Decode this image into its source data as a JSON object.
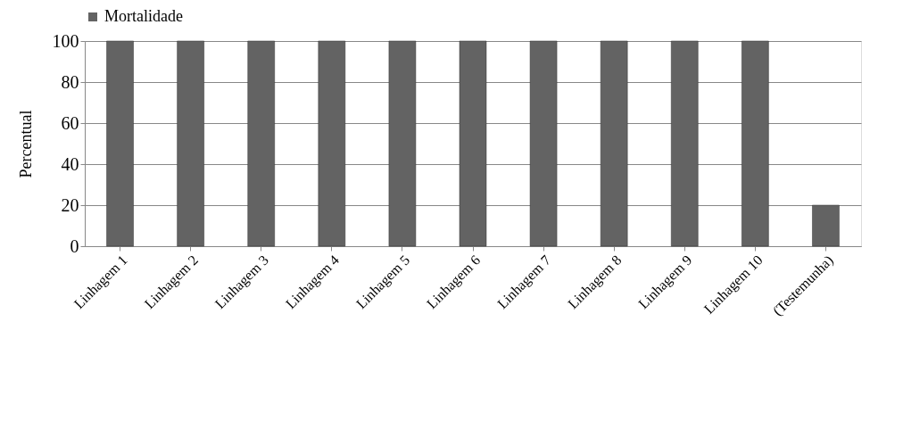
{
  "chart_data": {
    "type": "bar",
    "ylabel": "Percentual",
    "categories": [
      "Linhagem 1",
      "Linhagem 2",
      "Linhagem 3",
      "Linhagem 4",
      "Linhagem 5",
      "Linhagem 6",
      "Linhagem 7",
      "Linhagem 8",
      "Linhagem 9",
      "Linhagem 10",
      "(Testemunha)"
    ],
    "series": [
      {
        "name": "Mortalidade",
        "color": "#636363",
        "values": [
          100,
          100,
          100,
          100,
          100,
          100,
          100,
          100,
          100,
          100,
          20
        ]
      }
    ],
    "ylim": [
      0,
      100
    ],
    "yticks": [
      0,
      20,
      40,
      60,
      80,
      100
    ],
    "grid": "y",
    "legend": "top"
  }
}
